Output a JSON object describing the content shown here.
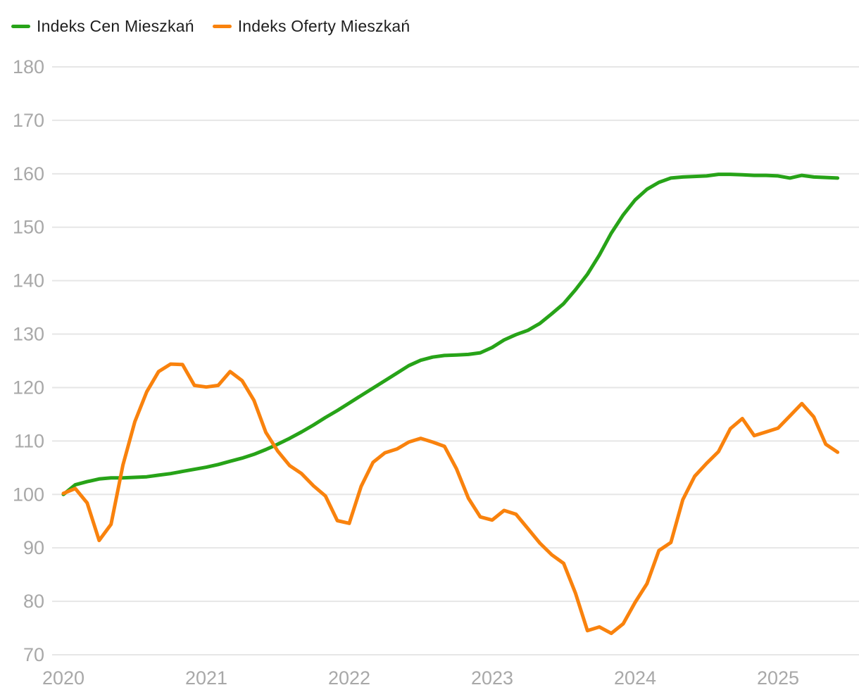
{
  "legend": {
    "items": [
      {
        "label": "Indeks Cen Mieszkań",
        "color": "#27a318",
        "icon": "green-line-swatch"
      },
      {
        "label": "Indeks Oferty Mieszkań",
        "color": "#f9820d",
        "icon": "orange-line-swatch"
      }
    ]
  },
  "axes": {
    "y_tick_labels": [
      "70",
      "80",
      "90",
      "100",
      "110",
      "120",
      "130",
      "140",
      "150",
      "160",
      "170",
      "180"
    ],
    "x_tick_labels": [
      "2020",
      "2021",
      "2022",
      "2023",
      "2024",
      "2025"
    ],
    "tick_color": "#a8a8a8",
    "gridline_color": "#e6e6e6"
  },
  "chart_data": {
    "type": "line",
    "title": "",
    "xlabel": "",
    "ylabel": "",
    "x_unit": "month",
    "x_start": "2020-01",
    "x_end": "2025-06",
    "x_tick_labels": [
      "2020",
      "2021",
      "2022",
      "2023",
      "2024",
      "2025"
    ],
    "y_ticks": [
      70,
      80,
      90,
      100,
      110,
      120,
      130,
      140,
      150,
      160,
      170,
      180
    ],
    "ylim": [
      70,
      181
    ],
    "grid": "horizontal",
    "legend_position": "top-left",
    "series": [
      {
        "name": "Indeks Cen Mieszkań",
        "color": "#27a318",
        "values": [
          100.0,
          101.8,
          102.4,
          102.9,
          103.1,
          103.1,
          103.2,
          103.3,
          103.6,
          103.9,
          104.3,
          104.7,
          105.1,
          105.6,
          106.2,
          106.8,
          107.5,
          108.4,
          109.4,
          110.5,
          111.7,
          113.0,
          114.4,
          115.7,
          117.1,
          118.5,
          119.9,
          121.3,
          122.7,
          124.1,
          125.1,
          125.7,
          126.0,
          126.1,
          126.2,
          126.5,
          127.5,
          128.9,
          129.9,
          130.7,
          132.0,
          133.8,
          135.7,
          138.3,
          141.2,
          144.8,
          148.9,
          152.3,
          155.1,
          157.1,
          158.4,
          159.2,
          159.4,
          159.5,
          159.6,
          159.9,
          159.9,
          159.8,
          159.7,
          159.7,
          159.6,
          159.2,
          159.7,
          159.4,
          159.3,
          159.2
        ]
      },
      {
        "name": "Indeks Oferty Mieszkań",
        "color": "#f9820d",
        "values": [
          100.2,
          101.1,
          98.4,
          91.4,
          94.4,
          105.5,
          113.6,
          119.2,
          123.0,
          124.4,
          124.3,
          120.4,
          120.1,
          120.4,
          123.0,
          121.3,
          117.6,
          111.6,
          108.1,
          105.4,
          103.9,
          101.6,
          99.7,
          95.1,
          94.6,
          101.5,
          106.0,
          107.8,
          108.5,
          109.8,
          110.5,
          109.8,
          109.0,
          104.8,
          99.3,
          95.8,
          95.2,
          97.0,
          96.3,
          93.6,
          90.9,
          88.7,
          87.1,
          81.5,
          74.5,
          75.2,
          74.0,
          75.8,
          79.8,
          83.3,
          89.5,
          91.0,
          99.0,
          103.4,
          105.8,
          108.0,
          112.3,
          114.2,
          111.0,
          111.7,
          112.4,
          114.7,
          117.0,
          114.5,
          109.4,
          107.9
        ]
      }
    ]
  }
}
